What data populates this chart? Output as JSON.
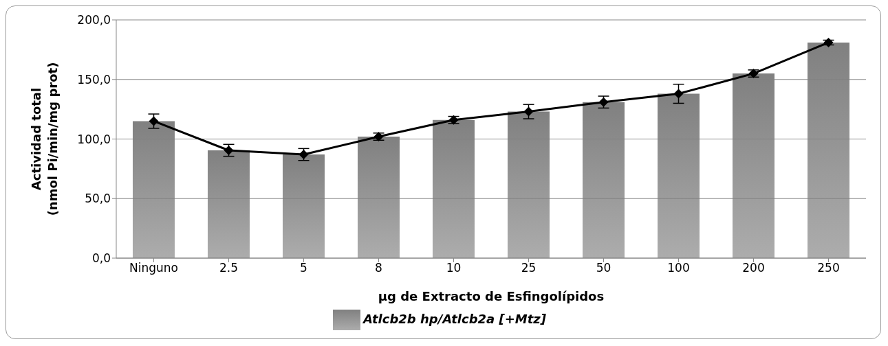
{
  "chart_data": {
    "type": "bar",
    "xlabel": "μg de Extracto de Esfingolípidos",
    "ylabel": "Actividad total\n(nmol Pi/min/mg prot)",
    "categories": [
      "Ninguno",
      "2.5",
      "5",
      "8",
      "10",
      "25",
      "50",
      "100",
      "200",
      "250"
    ],
    "series": [
      {
        "name": "Atlcb2b hp/Atlcb2a [+Mtz]",
        "color": "#808080",
        "values": [
          115,
          90.5,
          87,
          102,
          116,
          123,
          131,
          138,
          155,
          181
        ]
      },
      {
        "type": "line",
        "color": "#000000",
        "values": [
          115,
          90.5,
          87,
          102,
          116,
          123,
          131,
          138,
          155,
          181
        ],
        "errors": [
          6,
          5,
          5,
          3,
          3,
          6,
          5,
          8,
          3,
          2
        ],
        "marker": "diamond",
        "line_style": "solid"
      }
    ],
    "ylim": [
      0,
      200
    ],
    "yticks": [
      {
        "value": 0,
        "label": "0,0"
      },
      {
        "value": 50,
        "label": "50,0"
      },
      {
        "value": 100,
        "label": "100,0"
      },
      {
        "value": 150,
        "label": "150,0"
      },
      {
        "value": 200,
        "label": "200,0"
      }
    ],
    "grid": "y",
    "legend": "bottom"
  }
}
